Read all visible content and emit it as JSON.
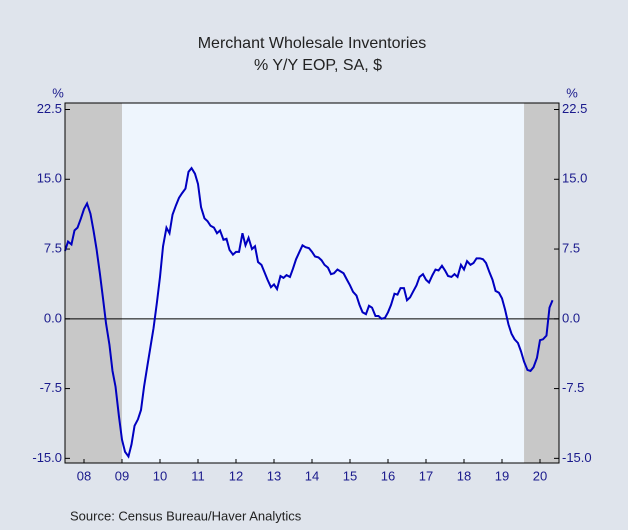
{
  "chart_data": {
    "type": "line",
    "title": "Merchant Wholesale Inventories",
    "subtitle": "% Y/Y   EOP, SA, $",
    "y_label": "%",
    "y2_label": "%",
    "source": "Source:  Census Bureau/Haver Analytics",
    "xlim": [
      2008,
      2021
    ],
    "xticks": [
      {
        "value": 2008.5,
        "label": "08"
      },
      {
        "value": 2009.5,
        "label": "09"
      },
      {
        "value": 2010.5,
        "label": "10"
      },
      {
        "value": 2011.5,
        "label": "11"
      },
      {
        "value": 2012.5,
        "label": "12"
      },
      {
        "value": 2013.5,
        "label": "13"
      },
      {
        "value": 2014.5,
        "label": "14"
      },
      {
        "value": 2015.5,
        "label": "15"
      },
      {
        "value": 2016.5,
        "label": "16"
      },
      {
        "value": 2017.5,
        "label": "17"
      },
      {
        "value": 2018.5,
        "label": "18"
      },
      {
        "value": 2019.5,
        "label": "19"
      },
      {
        "value": 2020.5,
        "label": "20"
      }
    ],
    "ylim": [
      -15.5,
      23.2
    ],
    "yticks": [
      {
        "value": -15,
        "label": "-15.0"
      },
      -7.5,
      {
        "value": 0,
        "label": "0.0"
      },
      7.5,
      {
        "value": 15,
        "label": "15.0"
      },
      22.5
    ],
    "y2lim": [
      -15.5,
      23.2
    ],
    "y2ticks": [
      {
        "value": -15,
        "label": "-15.0"
      },
      -7.5,
      {
        "value": 0,
        "label": "0.0"
      },
      7.5,
      {
        "value": 15,
        "label": "15.0"
      },
      22.5
    ],
    "shaded_periods": [
      [
        2008,
        2009.5
      ],
      [
        2020.08,
        2021
      ]
    ],
    "x": [
      2008.0,
      2008.08,
      2008.17,
      2008.25,
      2008.33,
      2008.42,
      2008.5,
      2008.58,
      2008.67,
      2008.75,
      2008.83,
      2008.92,
      2009.0,
      2009.08,
      2009.17,
      2009.25,
      2009.33,
      2009.42,
      2009.5,
      2009.58,
      2009.67,
      2009.75,
      2009.83,
      2009.92,
      2010.0,
      2010.08,
      2010.17,
      2010.25,
      2010.33,
      2010.42,
      2010.5,
      2010.58,
      2010.67,
      2010.75,
      2010.83,
      2010.92,
      2011.0,
      2011.08,
      2011.17,
      2011.25,
      2011.33,
      2011.42,
      2011.5,
      2011.58,
      2011.67,
      2011.75,
      2011.83,
      2011.92,
      2012.0,
      2012.08,
      2012.17,
      2012.25,
      2012.33,
      2012.42,
      2012.5,
      2012.58,
      2012.67,
      2012.75,
      2012.83,
      2012.92,
      2013.0,
      2013.08,
      2013.17,
      2013.25,
      2013.33,
      2013.42,
      2013.5,
      2013.58,
      2013.67,
      2013.75,
      2013.83,
      2013.92,
      2014.0,
      2014.08,
      2014.17,
      2014.25,
      2014.33,
      2014.42,
      2014.5,
      2014.58,
      2014.67,
      2014.75,
      2014.83,
      2014.92,
      2015.0,
      2015.08,
      2015.17,
      2015.25,
      2015.33,
      2015.42,
      2015.5,
      2015.58,
      2015.67,
      2015.75,
      2015.83,
      2015.92,
      2016.0,
      2016.08,
      2016.17,
      2016.25,
      2016.33,
      2016.42,
      2016.5,
      2016.58,
      2016.67,
      2016.75,
      2016.83,
      2016.92,
      2017.0,
      2017.08,
      2017.17,
      2017.25,
      2017.33,
      2017.42,
      2017.5,
      2017.58,
      2017.67,
      2017.75,
      2017.83,
      2017.92,
      2018.0,
      2018.08,
      2018.17,
      2018.25,
      2018.33,
      2018.42,
      2018.5,
      2018.58,
      2018.67,
      2018.75,
      2018.83,
      2018.92,
      2019.0,
      2019.08,
      2019.17,
      2019.25,
      2019.33,
      2019.42,
      2019.5,
      2019.58,
      2019.67,
      2019.75,
      2019.83,
      2019.92,
      2020.0,
      2020.08,
      2020.17,
      2020.25,
      2020.33,
      2020.42,
      2020.5,
      2020.58,
      2020.67,
      2020.75,
      2020.83
    ],
    "series": [
      {
        "color": "#0000c0",
        "values": [
          7.3,
          8.3,
          8.0,
          9.5,
          9.8,
          10.8,
          11.8,
          12.4,
          11.3,
          9.5,
          7.5,
          4.8,
          2.2,
          -0.5,
          -2.8,
          -5.6,
          -7.3,
          -10.5,
          -13.0,
          -14.3,
          -14.8,
          -13.5,
          -11.5,
          -10.8,
          -9.8,
          -7.3,
          -5.0,
          -3.0,
          -1.0,
          1.8,
          4.5,
          7.8,
          9.8,
          9.2,
          11.2,
          12.2,
          13.0,
          13.5,
          14.0,
          15.8,
          16.2,
          15.6,
          14.5,
          12.0,
          10.8,
          10.5,
          10.0,
          9.8,
          9.2,
          9.5,
          8.5,
          8.6,
          7.4,
          6.9,
          7.2,
          7.2,
          9.2,
          7.9,
          8.7,
          7.5,
          7.8,
          6.1,
          5.8,
          5.0,
          4.2,
          3.4,
          3.7,
          3.2,
          4.6,
          4.4,
          4.7,
          4.5,
          5.4,
          6.4,
          7.2,
          7.9,
          7.7,
          7.6,
          7.2,
          6.7,
          6.6,
          6.3,
          5.8,
          5.5,
          4.8,
          4.9,
          5.3,
          5.1,
          4.9,
          4.2,
          3.6,
          2.9,
          2.5,
          1.5,
          0.7,
          0.5,
          1.4,
          1.2,
          0.3,
          0.3,
          0.0,
          0.1,
          0.7,
          1.5,
          2.7,
          2.6,
          3.3,
          3.3,
          2.0,
          2.3,
          3.0,
          3.6,
          4.5,
          4.8,
          4.2,
          3.9,
          4.7,
          5.3,
          5.2,
          5.7,
          5.2,
          4.6,
          4.5,
          4.8,
          4.5,
          5.8,
          5.3,
          6.2,
          5.8,
          6.0,
          6.5,
          6.5,
          6.4,
          6.0,
          5.0,
          4.2,
          3.0,
          2.8,
          2.2,
          1.0,
          -0.6,
          -1.6,
          -2.2,
          -2.6,
          -3.5,
          -4.6,
          -5.5,
          -5.6,
          -5.2,
          -4.2,
          -2.3,
          -2.2,
          -1.8,
          1.2,
          2.0
        ]
      }
    ]
  }
}
